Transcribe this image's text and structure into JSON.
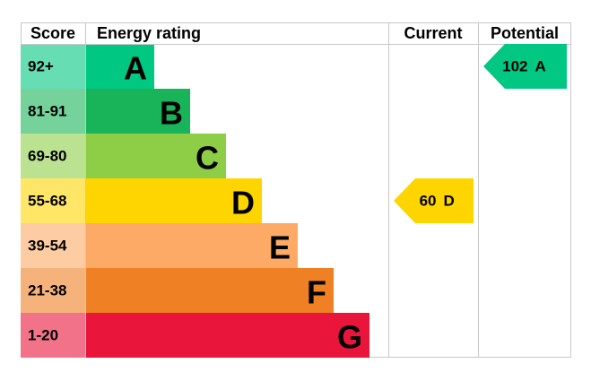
{
  "chart_data": {
    "type": "epc",
    "headers": [
      "Score",
      "Energy rating",
      "Current",
      "Potential"
    ],
    "bands": [
      {
        "score": "92+",
        "label": "A",
        "color": "#00c781"
      },
      {
        "score": "81-91",
        "label": "B",
        "color": "#19b459"
      },
      {
        "score": "69-80",
        "label": "C",
        "color": "#8dce46"
      },
      {
        "score": "55-68",
        "label": "D",
        "color": "#ffd500"
      },
      {
        "score": "39-54",
        "label": "E",
        "color": "#fcaa65"
      },
      {
        "score": "21-38",
        "label": "F",
        "color": "#ef8023"
      },
      {
        "score": "1-20",
        "label": "G",
        "color": "#e9153b"
      }
    ],
    "current": {
      "value": 60,
      "label": "D"
    },
    "potential": {
      "value": 102,
      "label": "A"
    }
  }
}
